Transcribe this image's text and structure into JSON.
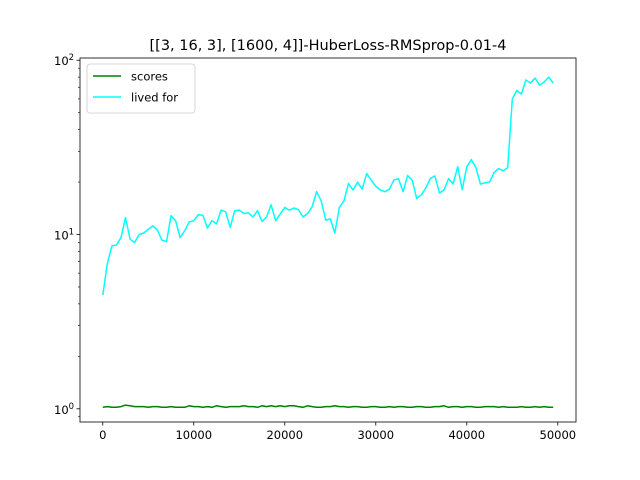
{
  "chart_data": {
    "type": "line",
    "title": "[[3, 16, 3], [1600, 4]]-HuberLoss-RMSprop-0.01-4",
    "xlabel": "",
    "ylabel": "",
    "xlim": [
      -2500,
      52000
    ],
    "ylim": [
      0.84,
      103
    ],
    "yscale": "log",
    "grid": false,
    "legend_position": "top-left",
    "x_ticks": [
      {
        "value": 0,
        "label": "0"
      },
      {
        "value": 10000,
        "label": "10000"
      },
      {
        "value": 20000,
        "label": "20000"
      },
      {
        "value": 30000,
        "label": "30000"
      },
      {
        "value": 40000,
        "label": "40000"
      },
      {
        "value": 50000,
        "label": "50000"
      }
    ],
    "y_ticks": [
      {
        "value": 1,
        "label": "10",
        "exp": "0"
      },
      {
        "value": 10,
        "label": "10",
        "exp": "1"
      },
      {
        "value": 100,
        "label": "10",
        "exp": "2"
      }
    ],
    "x": [
      0,
      500,
      1000,
      1500,
      2000,
      2500,
      3000,
      3500,
      4000,
      4500,
      5000,
      5500,
      6000,
      6500,
      7000,
      7500,
      8000,
      8500,
      9000,
      9500,
      10000,
      10500,
      11000,
      11500,
      12000,
      12500,
      13000,
      13500,
      14000,
      14500,
      15000,
      15500,
      16000,
      16500,
      17000,
      17500,
      18000,
      18500,
      19000,
      19500,
      20000,
      20500,
      21000,
      21500,
      22000,
      22500,
      23000,
      23500,
      24000,
      24500,
      25000,
      25500,
      26000,
      26500,
      27000,
      27500,
      28000,
      28500,
      29000,
      29500,
      30000,
      30500,
      31000,
      31500,
      32000,
      32500,
      33000,
      33500,
      34000,
      34500,
      35000,
      35500,
      36000,
      36500,
      37000,
      37500,
      38000,
      38500,
      39000,
      39500,
      40000,
      40500,
      41000,
      41500,
      42000,
      42500,
      43000,
      43500,
      44000,
      44500,
      45000,
      45500,
      46000,
      46500,
      47000,
      47500,
      48000,
      48500,
      49000,
      49500
    ],
    "series": [
      {
        "name": "scores",
        "color": "#008000",
        "values": [
          1.02,
          1.03,
          1.02,
          1.02,
          1.03,
          1.05,
          1.04,
          1.03,
          1.03,
          1.03,
          1.02,
          1.03,
          1.03,
          1.02,
          1.02,
          1.03,
          1.02,
          1.02,
          1.02,
          1.04,
          1.03,
          1.03,
          1.02,
          1.03,
          1.02,
          1.04,
          1.03,
          1.02,
          1.03,
          1.03,
          1.03,
          1.04,
          1.03,
          1.03,
          1.02,
          1.04,
          1.03,
          1.04,
          1.03,
          1.04,
          1.03,
          1.04,
          1.04,
          1.03,
          1.02,
          1.04,
          1.03,
          1.02,
          1.02,
          1.03,
          1.03,
          1.04,
          1.03,
          1.03,
          1.02,
          1.03,
          1.03,
          1.02,
          1.02,
          1.03,
          1.03,
          1.02,
          1.02,
          1.03,
          1.02,
          1.03,
          1.03,
          1.02,
          1.02,
          1.03,
          1.03,
          1.02,
          1.02,
          1.03,
          1.03,
          1.04,
          1.02,
          1.03,
          1.03,
          1.02,
          1.03,
          1.03,
          1.02,
          1.02,
          1.03,
          1.03,
          1.03,
          1.02,
          1.03,
          1.02,
          1.02,
          1.02,
          1.03,
          1.02,
          1.02,
          1.03,
          1.02,
          1.03,
          1.02,
          1.02
        ]
      },
      {
        "name": "lived for",
        "color": "#00ffff",
        "values": [
          4.5,
          6.8,
          8.6,
          8.7,
          9.6,
          12.5,
          9.4,
          9.0,
          10.0,
          10.2,
          10.7,
          11.2,
          10.6,
          9.3,
          9.1,
          12.8,
          12.0,
          9.6,
          10.5,
          11.8,
          12.0,
          13.0,
          12.9,
          10.9,
          12.0,
          11.5,
          13.8,
          13.5,
          11.0,
          13.7,
          13.8,
          13.2,
          13.3,
          12.6,
          13.7,
          11.9,
          12.6,
          14.8,
          12.0,
          13.1,
          14.3,
          13.8,
          14.2,
          13.9,
          12.6,
          13.2,
          14.4,
          17.6,
          15.6,
          12.1,
          12.3,
          10.2,
          14.3,
          15.6,
          19.6,
          18.0,
          20.0,
          18.2,
          22.4,
          20.5,
          18.9,
          18.0,
          17.6,
          18.2,
          20.6,
          20.9,
          17.6,
          21.8,
          20.5,
          16.1,
          16.9,
          18.5,
          21.0,
          21.7,
          17.3,
          18.0,
          20.9,
          19.5,
          24.5,
          18.1,
          24.5,
          26.9,
          24.2,
          19.5,
          19.8,
          20.0,
          22.7,
          23.9,
          23.2,
          24.2,
          60.0,
          67.0,
          64.0,
          77.0,
          74.0,
          79.0,
          72.0,
          75.0,
          80.0,
          74.0
        ]
      }
    ]
  }
}
